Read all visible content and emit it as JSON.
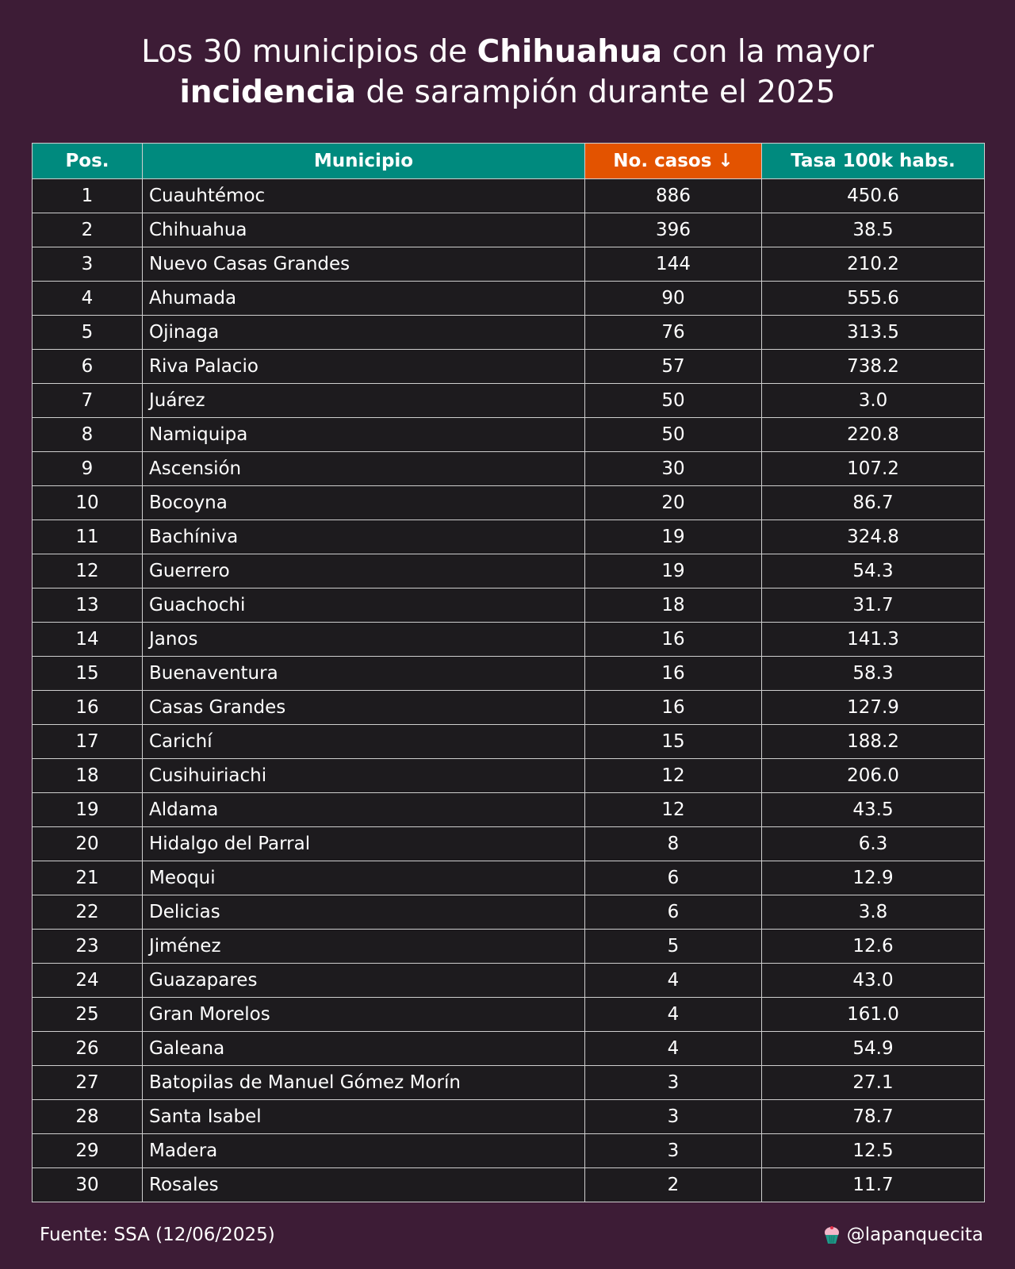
{
  "header": {
    "title_parts": [
      "Los 30 municipios de ",
      "Chihuahua",
      " con la mayor",
      "incidencia",
      " de sarampión durante el 2025"
    ]
  },
  "footer": {
    "source": "Fuente: SSA (12/06/2025)",
    "handle": "@lapanquecita",
    "handle_icon": "cupcake-icon"
  },
  "colors": {
    "background": "#3d1c36",
    "header_fill": "#008a7e",
    "sorted_header_fill": "#e35300",
    "row_fill": "#1d1b1e"
  },
  "chart_data": {
    "type": "table",
    "columns": [
      "Pos.",
      "Municipio",
      "No. casos ↓",
      "Tasa 100k habs."
    ],
    "sorted_column": 2,
    "rows": [
      [
        "1",
        "Cuauhtémoc",
        "886",
        "450.6"
      ],
      [
        "2",
        "Chihuahua",
        "396",
        "38.5"
      ],
      [
        "3",
        "Nuevo Casas Grandes",
        "144",
        "210.2"
      ],
      [
        "4",
        "Ahumada",
        "90",
        "555.6"
      ],
      [
        "5",
        "Ojinaga",
        "76",
        "313.5"
      ],
      [
        "6",
        "Riva Palacio",
        "57",
        "738.2"
      ],
      [
        "7",
        "Juárez",
        "50",
        "3.0"
      ],
      [
        "8",
        "Namiquipa",
        "50",
        "220.8"
      ],
      [
        "9",
        "Ascensión",
        "30",
        "107.2"
      ],
      [
        "10",
        "Bocoyna",
        "20",
        "86.7"
      ],
      [
        "11",
        "Bachíniva",
        "19",
        "324.8"
      ],
      [
        "12",
        "Guerrero",
        "19",
        "54.3"
      ],
      [
        "13",
        "Guachochi",
        "18",
        "31.7"
      ],
      [
        "14",
        "Janos",
        "16",
        "141.3"
      ],
      [
        "15",
        "Buenaventura",
        "16",
        "58.3"
      ],
      [
        "16",
        "Casas Grandes",
        "16",
        "127.9"
      ],
      [
        "17",
        "Carichí",
        "15",
        "188.2"
      ],
      [
        "18",
        "Cusihuiriachi",
        "12",
        "206.0"
      ],
      [
        "19",
        "Aldama",
        "12",
        "43.5"
      ],
      [
        "20",
        "Hidalgo del Parral",
        "8",
        "6.3"
      ],
      [
        "21",
        "Meoqui",
        "6",
        "12.9"
      ],
      [
        "22",
        "Delicias",
        "6",
        "3.8"
      ],
      [
        "23",
        "Jiménez",
        "5",
        "12.6"
      ],
      [
        "24",
        "Guazapares",
        "4",
        "43.0"
      ],
      [
        "25",
        "Gran Morelos",
        "4",
        "161.0"
      ],
      [
        "26",
        "Galeana",
        "4",
        "54.9"
      ],
      [
        "27",
        "Batopilas de Manuel Gómez Morín",
        "3",
        "27.1"
      ],
      [
        "28",
        "Santa Isabel",
        "3",
        "78.7"
      ],
      [
        "29",
        "Madera",
        "3",
        "12.5"
      ],
      [
        "30",
        "Rosales",
        "2",
        "11.7"
      ]
    ]
  }
}
